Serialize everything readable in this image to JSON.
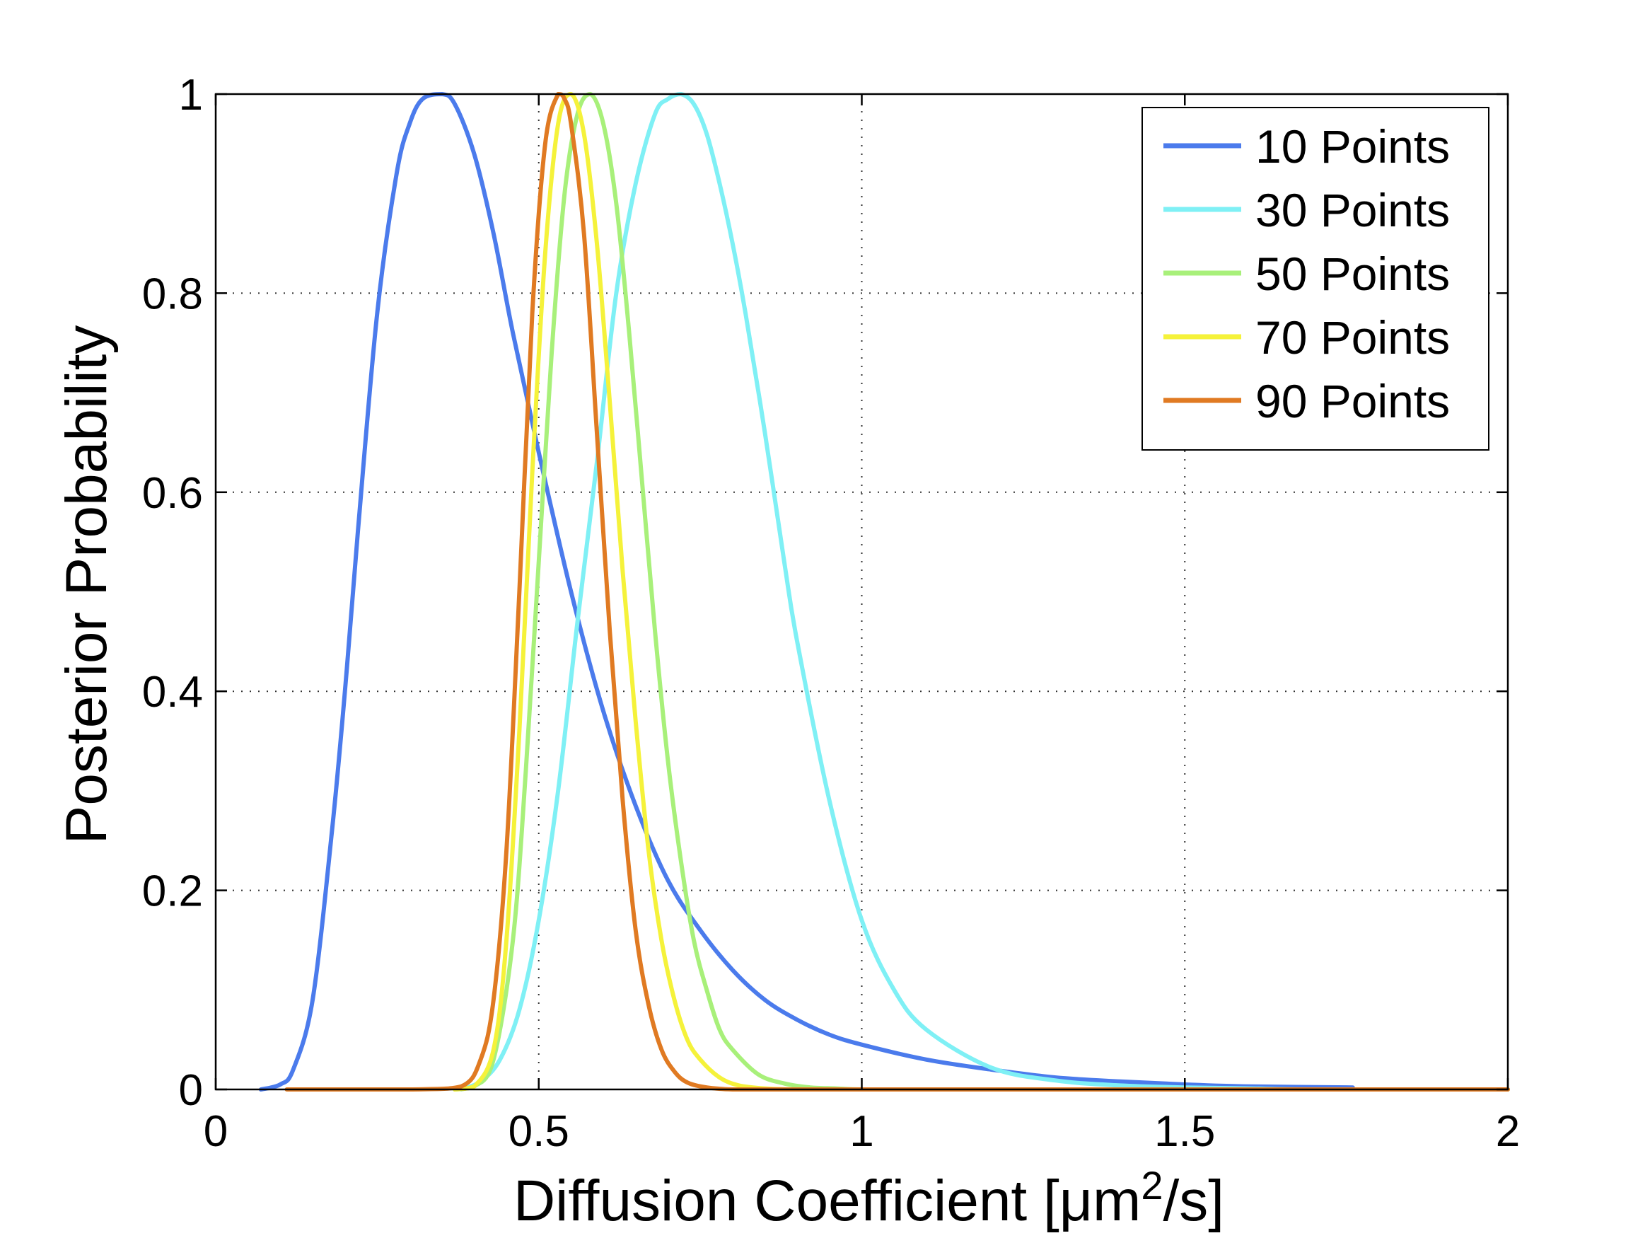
{
  "chart_data": {
    "type": "line",
    "title": "",
    "xlabel": "Diffusion Coefficient [μm",
    "xlabel_sup": "2",
    "xlabel_suffix": "/s]",
    "ylabel": "Posterior Probability",
    "xlim": [
      0,
      2
    ],
    "ylim": [
      0,
      1
    ],
    "grid": true,
    "legend_position": "top-right",
    "x_ticks": [
      {
        "value": 0,
        "label": "0"
      },
      {
        "value": 0.5,
        "label": "0.5"
      },
      {
        "value": 1,
        "label": "1"
      },
      {
        "value": 1.5,
        "label": "1.5"
      },
      {
        "value": 2,
        "label": "2"
      }
    ],
    "y_ticks": [
      {
        "value": 0,
        "label": "0"
      },
      {
        "value": 0.2,
        "label": "0.2"
      },
      {
        "value": 0.4,
        "label": "0.4"
      },
      {
        "value": 0.6,
        "label": "0.6"
      },
      {
        "value": 0.8,
        "label": "0.8"
      },
      {
        "value": 1,
        "label": "1"
      }
    ],
    "series": [
      {
        "name": "10 Points",
        "color": "#4b7bec",
        "x": [
          0.07,
          0.1,
          0.12,
          0.15,
          0.18,
          0.2,
          0.22,
          0.25,
          0.28,
          0.3,
          0.32,
          0.35,
          0.37,
          0.4,
          0.43,
          0.46,
          0.5,
          0.55,
          0.6,
          0.65,
          0.7,
          0.75,
          0.8,
          0.85,
          0.9,
          0.95,
          1.0,
          1.1,
          1.2,
          1.3,
          1.4,
          1.5,
          1.6,
          1.76
        ],
        "y": [
          0.0,
          0.005,
          0.02,
          0.09,
          0.26,
          0.4,
          0.56,
          0.78,
          0.92,
          0.97,
          0.995,
          1.0,
          0.99,
          0.94,
          0.86,
          0.76,
          0.64,
          0.5,
          0.38,
          0.285,
          0.21,
          0.16,
          0.12,
          0.09,
          0.07,
          0.055,
          0.045,
          0.03,
          0.02,
          0.012,
          0.008,
          0.005,
          0.003,
          0.002
        ]
      },
      {
        "name": "30 Points",
        "color": "#7ff0f5",
        "x": [
          0.38,
          0.41,
          0.44,
          0.47,
          0.5,
          0.53,
          0.56,
          0.59,
          0.62,
          0.65,
          0.68,
          0.7,
          0.72,
          0.74,
          0.76,
          0.78,
          0.8,
          0.82,
          0.85,
          0.88,
          0.9,
          0.95,
          1.0,
          1.05,
          1.1,
          1.2,
          1.3,
          1.4,
          1.5,
          1.6,
          1.7,
          2.0
        ],
        "y": [
          0.0,
          0.008,
          0.03,
          0.08,
          0.17,
          0.3,
          0.47,
          0.63,
          0.8,
          0.91,
          0.98,
          0.995,
          1.0,
          0.99,
          0.96,
          0.91,
          0.85,
          0.78,
          0.66,
          0.53,
          0.45,
          0.29,
          0.17,
          0.1,
          0.06,
          0.022,
          0.009,
          0.004,
          0.002,
          0.001,
          0.0,
          0.0
        ]
      },
      {
        "name": "50 Points",
        "color": "#a8f07a",
        "x": [
          0.37,
          0.4,
          0.43,
          0.46,
          0.48,
          0.5,
          0.52,
          0.54,
          0.56,
          0.58,
          0.6,
          0.62,
          0.64,
          0.66,
          0.68,
          0.7,
          0.72,
          0.74,
          0.76,
          0.78,
          0.8,
          0.84,
          0.88,
          0.92,
          0.96,
          1.0,
          1.1,
          2.0
        ],
        "y": [
          0.0,
          0.003,
          0.03,
          0.15,
          0.32,
          0.53,
          0.74,
          0.9,
          0.98,
          1.0,
          0.97,
          0.89,
          0.76,
          0.61,
          0.46,
          0.33,
          0.23,
          0.15,
          0.1,
          0.06,
          0.04,
          0.015,
          0.006,
          0.002,
          0.001,
          0.0,
          0.0,
          0.0
        ]
      },
      {
        "name": "70 Points",
        "color": "#f5f23a",
        "x": [
          0.37,
          0.4,
          0.43,
          0.45,
          0.47,
          0.49,
          0.51,
          0.53,
          0.55,
          0.57,
          0.59,
          0.61,
          0.63,
          0.65,
          0.67,
          0.69,
          0.71,
          0.73,
          0.75,
          0.78,
          0.81,
          0.85,
          0.9,
          1.0,
          2.0
        ],
        "y": [
          0.0,
          0.003,
          0.04,
          0.15,
          0.36,
          0.62,
          0.84,
          0.97,
          1.0,
          0.96,
          0.85,
          0.69,
          0.52,
          0.37,
          0.24,
          0.15,
          0.09,
          0.05,
          0.03,
          0.012,
          0.004,
          0.001,
          0.0,
          0.0,
          0.0
        ]
      },
      {
        "name": "90 Points",
        "color": "#e07a22",
        "x": [
          0.11,
          0.3,
          0.38,
          0.41,
          0.43,
          0.45,
          0.47,
          0.49,
          0.51,
          0.53,
          0.54,
          0.55,
          0.57,
          0.59,
          0.61,
          0.63,
          0.65,
          0.67,
          0.69,
          0.71,
          0.73,
          0.76,
          0.8,
          0.85,
          1.0,
          2.0
        ],
        "y": [
          0.0,
          0.0,
          0.003,
          0.03,
          0.09,
          0.24,
          0.5,
          0.78,
          0.95,
          1.0,
          0.995,
          0.97,
          0.86,
          0.66,
          0.46,
          0.29,
          0.16,
          0.085,
          0.04,
          0.018,
          0.007,
          0.002,
          0.0,
          0.0,
          0.0,
          0.0
        ]
      }
    ]
  }
}
